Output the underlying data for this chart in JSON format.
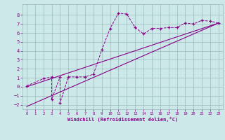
{
  "xlabel": "Windchill (Refroidissement éolien,°C)",
  "ylabel": "",
  "xlim": [
    -0.5,
    23.5
  ],
  "ylim": [
    -2.5,
    9.2
  ],
  "xticks": [
    0,
    1,
    2,
    3,
    4,
    5,
    6,
    7,
    8,
    9,
    10,
    11,
    12,
    13,
    14,
    15,
    16,
    17,
    18,
    19,
    20,
    21,
    22,
    23
  ],
  "yticks": [
    -2,
    -1,
    0,
    1,
    2,
    3,
    4,
    5,
    6,
    7,
    8
  ],
  "bg_color": "#cce8e8",
  "line_color": "#880088",
  "grid_color": "#99bbbb",
  "data_x": [
    0,
    2,
    3,
    3,
    4,
    4,
    5,
    6,
    7,
    8,
    9,
    10,
    11,
    12,
    13,
    14,
    15,
    16,
    17,
    18,
    19,
    20,
    21,
    22,
    23
  ],
  "data_y": [
    0.1,
    0.9,
    1.1,
    -1.4,
    1.1,
    -1.8,
    1.1,
    1.1,
    1.1,
    1.4,
    4.1,
    6.5,
    8.2,
    8.1,
    6.6,
    5.9,
    6.5,
    6.5,
    6.6,
    6.6,
    7.1,
    7.0,
    7.4,
    7.3,
    7.1
  ],
  "line1_x": [
    0,
    23
  ],
  "line1_y": [
    0.0,
    7.1
  ],
  "line2_x": [
    0,
    23
  ],
  "line2_y": [
    -2.2,
    7.1
  ]
}
